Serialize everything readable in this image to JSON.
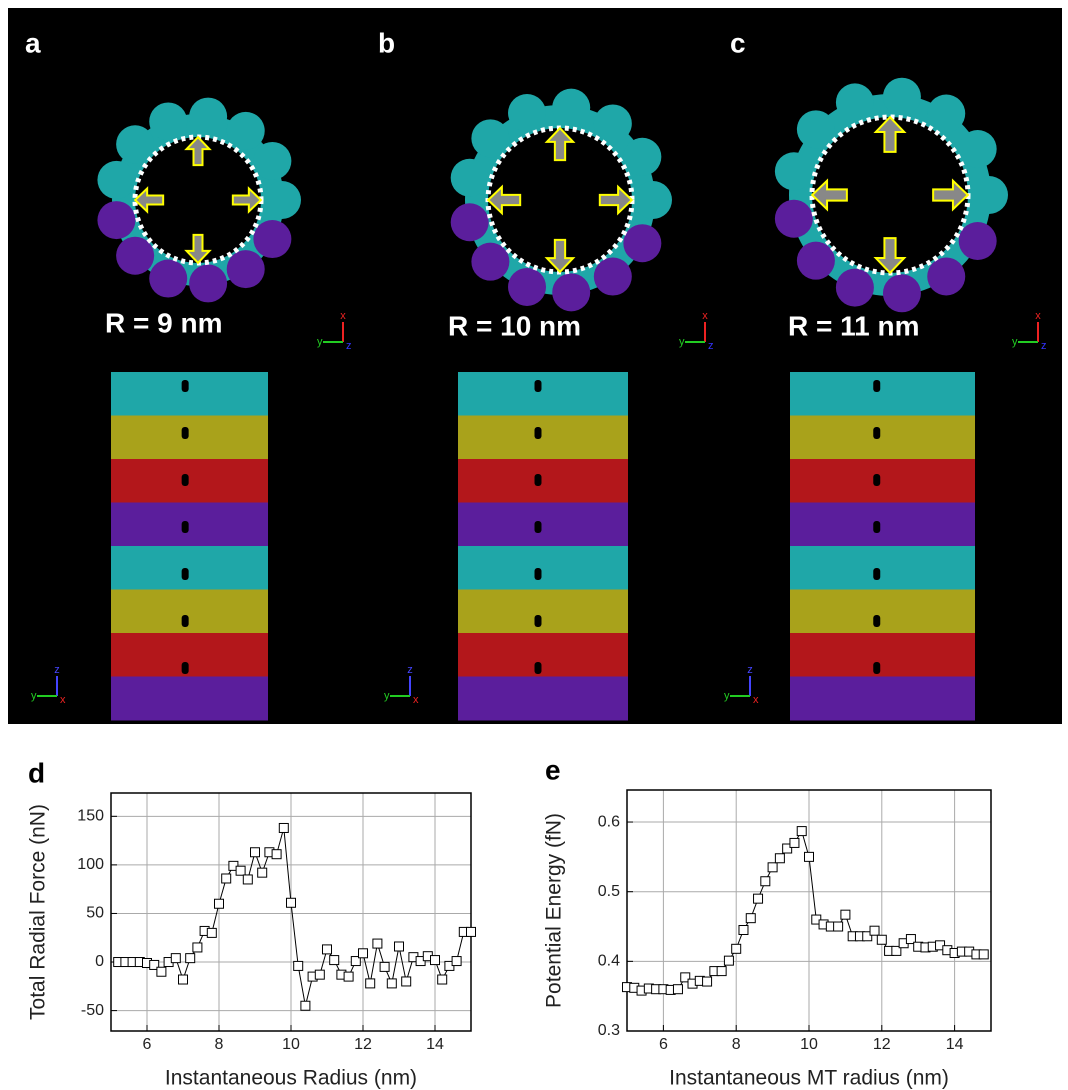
{
  "panels": [
    {
      "label": "a",
      "radius_label": "R = 9 nm"
    },
    {
      "label": "b",
      "radius_label": "R = 10 nm"
    },
    {
      "label": "c",
      "radius_label": "R = 11 nm"
    }
  ],
  "axis_triad": {
    "x": "x",
    "y": "y",
    "z": "z"
  },
  "chart_data": [
    {
      "type": "line",
      "panel_label": "d",
      "xlabel": "Instantaneous Radius (nm)",
      "ylabel": "Total Radial Force (nN)",
      "xlim": [
        5,
        15
      ],
      "xticks": [
        6,
        8,
        10,
        12,
        14
      ],
      "ylim": [
        -71,
        174
      ],
      "yticks": [
        -50,
        0,
        50,
        100,
        150
      ],
      "grid": true,
      "color": "#000000",
      "x": [
        5.2,
        5.4,
        5.6,
        5.8,
        6.0,
        6.2,
        6.4,
        6.6,
        6.8,
        7.0,
        7.2,
        7.4,
        7.6,
        7.8,
        8.0,
        8.2,
        8.4,
        8.6,
        8.8,
        9.0,
        9.2,
        9.4,
        9.6,
        9.8,
        10.0,
        10.2,
        10.4,
        10.6,
        10.8,
        11.0,
        11.2,
        11.4,
        11.6,
        11.8,
        12.0,
        12.2,
        12.4,
        12.6,
        12.8,
        13.0,
        13.2,
        13.4,
        13.6,
        13.8,
        14.0,
        14.2,
        14.4,
        14.6,
        14.8,
        15.0
      ],
      "values": [
        0,
        0,
        0,
        0,
        -1,
        -3,
        -10,
        0,
        4,
        -18,
        4,
        15,
        32,
        30,
        60,
        86,
        99,
        94,
        85,
        113,
        92,
        113,
        111,
        138,
        61,
        -4,
        -45,
        -15,
        -13,
        13,
        2,
        -13,
        -15,
        1,
        9,
        -22,
        19,
        -5,
        -22,
        16,
        -20,
        5,
        1,
        6,
        2,
        -18,
        -4,
        1,
        31,
        31
      ]
    },
    {
      "type": "line",
      "panel_label": "e",
      "xlabel": "Instantaneous MT radius (nm)",
      "ylabel": "Potential Energy (fN)",
      "xlim": [
        5,
        15
      ],
      "xticks": [
        6,
        8,
        10,
        12,
        14
      ],
      "ylim": [
        0.3,
        0.646
      ],
      "yticks": [
        0.3,
        0.4,
        0.5,
        0.6
      ],
      "grid": true,
      "color": "#000000",
      "x": [
        5.0,
        5.2,
        5.4,
        5.6,
        5.8,
        6.0,
        6.2,
        6.4,
        6.6,
        6.8,
        7.0,
        7.2,
        7.4,
        7.6,
        7.8,
        8.0,
        8.2,
        8.4,
        8.6,
        8.8,
        9.0,
        9.2,
        9.4,
        9.6,
        9.8,
        10.0,
        10.2,
        10.4,
        10.6,
        10.8,
        11.0,
        11.2,
        11.4,
        11.6,
        11.8,
        12.0,
        12.2,
        12.4,
        12.6,
        12.8,
        13.0,
        13.2,
        13.4,
        13.6,
        13.8,
        14.0,
        14.2,
        14.4,
        14.6,
        14.8
      ],
      "values": [
        0.363,
        0.362,
        0.358,
        0.361,
        0.36,
        0.36,
        0.359,
        0.36,
        0.377,
        0.368,
        0.372,
        0.371,
        0.386,
        0.386,
        0.401,
        0.418,
        0.445,
        0.462,
        0.49,
        0.515,
        0.535,
        0.548,
        0.562,
        0.57,
        0.587,
        0.55,
        0.46,
        0.453,
        0.45,
        0.45,
        0.467,
        0.436,
        0.436,
        0.436,
        0.444,
        0.431,
        0.415,
        0.415,
        0.426,
        0.432,
        0.421,
        0.42,
        0.421,
        0.423,
        0.416,
        0.412,
        0.414,
        0.414,
        0.41,
        0.41
      ]
    }
  ]
}
